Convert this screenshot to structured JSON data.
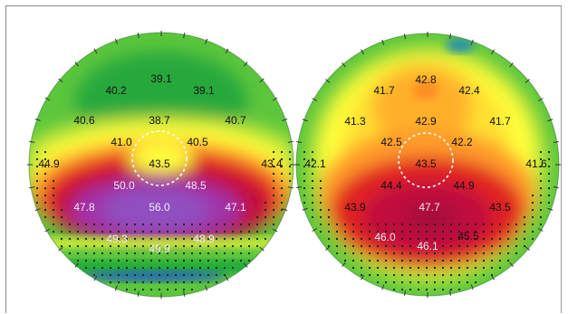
{
  "maps": [
    {
      "id": "left",
      "values": [
        {
          "text": "39.1",
          "light": false
        },
        {
          "text": "40.2",
          "light": false
        },
        {
          "text": "39.1",
          "light": false
        },
        {
          "text": "40.6",
          "light": false
        },
        {
          "text": "38.7",
          "light": false
        },
        {
          "text": "40.7",
          "light": false
        },
        {
          "text": "41.0",
          "light": false
        },
        {
          "text": "40.5",
          "light": false
        },
        {
          "text": "44.9",
          "light": false
        },
        {
          "text": "43.5",
          "light": false
        },
        {
          "text": "43.4",
          "light": false
        },
        {
          "text": "50.0",
          "light": true
        },
        {
          "text": "48.5",
          "light": true
        },
        {
          "text": "47.8",
          "light": true
        },
        {
          "text": "56.0",
          "light": true
        },
        {
          "text": "47.1",
          "light": true
        },
        {
          "text": "49.3",
          "light": true
        },
        {
          "text": "48.9",
          "light": true
        },
        {
          "text": "49.9",
          "light": true
        }
      ]
    },
    {
      "id": "right",
      "values": [
        {
          "text": "42.8",
          "light": false
        },
        {
          "text": "41.7",
          "light": false
        },
        {
          "text": "42.4",
          "light": false
        },
        {
          "text": "41.3",
          "light": false
        },
        {
          "text": "42.9",
          "light": false
        },
        {
          "text": "41.7",
          "light": false
        },
        {
          "text": "42.5",
          "light": false
        },
        {
          "text": "42.2",
          "light": false
        },
        {
          "text": "42.1",
          "light": false
        },
        {
          "text": "43.5",
          "light": false
        },
        {
          "text": "41.6",
          "light": false
        },
        {
          "text": "44.4",
          "light": false
        },
        {
          "text": "44.9",
          "light": false
        },
        {
          "text": "43.9",
          "light": false
        },
        {
          "text": "47.7",
          "light": true
        },
        {
          "text": "43.5",
          "light": false
        },
        {
          "text": "46.0",
          "light": true
        },
        {
          "text": "46.1",
          "light": true
        },
        {
          "text": "45.5",
          "light": false
        }
      ]
    }
  ],
  "colors": {
    "frame": "#8a8a8a",
    "green_dark": "#1fa83a",
    "green": "#5cc63c",
    "yellow_green": "#c6e83a",
    "yellow": "#ffff3a",
    "orange": "#ff9a2a",
    "red": "#e02020",
    "crimson": "#c0103c",
    "purple": "#a030a8",
    "violet": "#9050c0",
    "blue": "#2060c0"
  }
}
